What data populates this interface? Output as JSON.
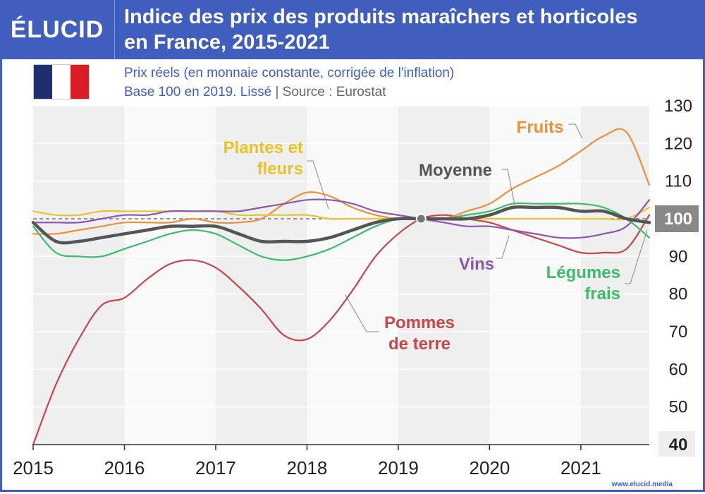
{
  "brand": {
    "logo_text": "ÉLUCID",
    "footer_url": "www.elucid.media"
  },
  "header": {
    "title_line1": "Indice des prix des produits maraîchers et horticoles",
    "title_line2": "en France, 2015-2021"
  },
  "subtitle": {
    "line1": "Prix réels (en monnaie constante, corrigée de l'inflation)",
    "line2_main": "Base 100 en 2019. Lissé",
    "line2_sep": "|",
    "line2_source": "Source : Eurostat"
  },
  "flag": {
    "colors": [
      "#1f2f6e",
      "#ffffff",
      "#dd1d25"
    ]
  },
  "chart_data": {
    "type": "line",
    "y_ticks": [
      130,
      120,
      110,
      100,
      90,
      80,
      70,
      60,
      50,
      40
    ],
    "x_ticks": [
      "2015",
      "2016",
      "2017",
      "2018",
      "2019",
      "2020",
      "2021"
    ],
    "xlim": [
      2015,
      2021.75
    ],
    "ylim": [
      40,
      130
    ],
    "reference_line": 100,
    "base_point": {
      "x": 2019.25,
      "y": 100
    },
    "series": [
      {
        "name": "Pommes de terre",
        "label": [
          "Pommes",
          "de terre"
        ],
        "color": "#c9474c",
        "points": [
          [
            2015,
            40
          ],
          [
            2015.25,
            56
          ],
          [
            2015.5,
            68
          ],
          [
            2015.75,
            77
          ],
          [
            2016,
            79
          ],
          [
            2016.25,
            84
          ],
          [
            2016.5,
            88
          ],
          [
            2016.75,
            89
          ],
          [
            2017,
            87
          ],
          [
            2017.25,
            82
          ],
          [
            2017.5,
            76
          ],
          [
            2017.75,
            69
          ],
          [
            2018,
            68
          ],
          [
            2018.25,
            73
          ],
          [
            2018.5,
            81
          ],
          [
            2018.75,
            90
          ],
          [
            2019,
            96
          ],
          [
            2019.25,
            100
          ],
          [
            2019.5,
            101
          ],
          [
            2019.75,
            100
          ],
          [
            2020,
            99
          ],
          [
            2020.25,
            97
          ],
          [
            2020.5,
            95
          ],
          [
            2020.75,
            93
          ],
          [
            2021,
            91
          ],
          [
            2021.25,
            91
          ],
          [
            2021.5,
            92
          ],
          [
            2021.75,
            101
          ]
        ]
      },
      {
        "name": "Fruits",
        "label": [
          "Fruits"
        ],
        "color": "#ee8f3a",
        "points": [
          [
            2015,
            96
          ],
          [
            2015.25,
            96
          ],
          [
            2015.5,
            97
          ],
          [
            2015.75,
            98
          ],
          [
            2016,
            99
          ],
          [
            2016.25,
            99
          ],
          [
            2016.5,
            99
          ],
          [
            2016.75,
            100
          ],
          [
            2017,
            99
          ],
          [
            2017.25,
            99
          ],
          [
            2017.5,
            100
          ],
          [
            2017.75,
            104
          ],
          [
            2018,
            107
          ],
          [
            2018.25,
            106
          ],
          [
            2018.5,
            103
          ],
          [
            2018.75,
            101
          ],
          [
            2019,
            100
          ],
          [
            2019.25,
            100
          ],
          [
            2019.5,
            100
          ],
          [
            2019.75,
            102
          ],
          [
            2020,
            104
          ],
          [
            2020.25,
            108
          ],
          [
            2020.5,
            111
          ],
          [
            2020.75,
            114
          ],
          [
            2021,
            118
          ],
          [
            2021.25,
            122
          ],
          [
            2021.5,
            123
          ],
          [
            2021.75,
            109
          ]
        ]
      },
      {
        "name": "Plantes et fleurs",
        "label": [
          "Plantes et",
          "fleurs"
        ],
        "color": "#e8c42b",
        "points": [
          [
            2015,
            102
          ],
          [
            2015.25,
            101
          ],
          [
            2015.5,
            101
          ],
          [
            2015.75,
            102
          ],
          [
            2016,
            102
          ],
          [
            2016.25,
            102
          ],
          [
            2016.5,
            102
          ],
          [
            2016.75,
            102
          ],
          [
            2017,
            102
          ],
          [
            2017.25,
            101
          ],
          [
            2017.5,
            101
          ],
          [
            2017.75,
            101
          ],
          [
            2018,
            101
          ],
          [
            2018.25,
            100
          ],
          [
            2018.5,
            100
          ],
          [
            2018.75,
            100
          ],
          [
            2019,
            100
          ],
          [
            2019.25,
            100
          ],
          [
            2019.5,
            100
          ],
          [
            2019.75,
            100
          ],
          [
            2020,
            100
          ],
          [
            2020.25,
            100
          ],
          [
            2020.5,
            100
          ],
          [
            2020.75,
            100
          ],
          [
            2021,
            100
          ],
          [
            2021.25,
            100
          ],
          [
            2021.5,
            100
          ],
          [
            2021.75,
            103
          ]
        ]
      },
      {
        "name": "Vins",
        "label": [
          "Vins"
        ],
        "color": "#8c55b0",
        "points": [
          [
            2015,
            99
          ],
          [
            2015.25,
            99
          ],
          [
            2015.5,
            99
          ],
          [
            2015.75,
            100
          ],
          [
            2016,
            101
          ],
          [
            2016.25,
            101
          ],
          [
            2016.5,
            102
          ],
          [
            2016.75,
            102
          ],
          [
            2017,
            102
          ],
          [
            2017.25,
            102
          ],
          [
            2017.5,
            103
          ],
          [
            2017.75,
            104
          ],
          [
            2018,
            105
          ],
          [
            2018.25,
            105
          ],
          [
            2018.5,
            104
          ],
          [
            2018.75,
            102
          ],
          [
            2019,
            101
          ],
          [
            2019.25,
            100
          ],
          [
            2019.5,
            99
          ],
          [
            2019.75,
            98
          ],
          [
            2020,
            98
          ],
          [
            2020.25,
            97
          ],
          [
            2020.5,
            96
          ],
          [
            2020.75,
            95
          ],
          [
            2021,
            95
          ],
          [
            2021.25,
            96
          ],
          [
            2021.5,
            98
          ],
          [
            2021.75,
            105
          ]
        ]
      },
      {
        "name": "Légumes frais",
        "label": [
          "Légumes",
          "frais"
        ],
        "color": "#3bbd6b",
        "points": [
          [
            2015,
            98
          ],
          [
            2015.25,
            91
          ],
          [
            2015.5,
            90
          ],
          [
            2015.75,
            90
          ],
          [
            2016,
            92
          ],
          [
            2016.25,
            94
          ],
          [
            2016.5,
            96
          ],
          [
            2016.75,
            97
          ],
          [
            2017,
            96
          ],
          [
            2017.25,
            93
          ],
          [
            2017.5,
            90
          ],
          [
            2017.75,
            89
          ],
          [
            2018,
            90
          ],
          [
            2018.25,
            92
          ],
          [
            2018.5,
            95
          ],
          [
            2018.75,
            98
          ],
          [
            2019,
            100
          ],
          [
            2019.25,
            100
          ],
          [
            2019.5,
            100
          ],
          [
            2019.75,
            101
          ],
          [
            2020,
            102
          ],
          [
            2020.25,
            104
          ],
          [
            2020.5,
            104
          ],
          [
            2020.75,
            104
          ],
          [
            2021,
            104
          ],
          [
            2021.25,
            103
          ],
          [
            2021.5,
            100
          ],
          [
            2021.75,
            95
          ]
        ]
      },
      {
        "name": "Moyenne",
        "label": [
          "Moyenne"
        ],
        "color": "#555555",
        "points": [
          [
            2015,
            99
          ],
          [
            2015.25,
            94
          ],
          [
            2015.5,
            94
          ],
          [
            2015.75,
            95
          ],
          [
            2016,
            96
          ],
          [
            2016.25,
            97
          ],
          [
            2016.5,
            98
          ],
          [
            2016.75,
            98
          ],
          [
            2017,
            98
          ],
          [
            2017.25,
            96
          ],
          [
            2017.5,
            94
          ],
          [
            2017.75,
            94
          ],
          [
            2018,
            94
          ],
          [
            2018.25,
            95
          ],
          [
            2018.5,
            97
          ],
          [
            2018.75,
            99
          ],
          [
            2019,
            100
          ],
          [
            2019.25,
            100
          ],
          [
            2019.5,
            100
          ],
          [
            2019.75,
            100
          ],
          [
            2020,
            101
          ],
          [
            2020.25,
            103
          ],
          [
            2020.5,
            103
          ],
          [
            2020.75,
            103
          ],
          [
            2021,
            102
          ],
          [
            2021.25,
            102
          ],
          [
            2021.5,
            100
          ],
          [
            2021.75,
            99
          ]
        ]
      }
    ]
  }
}
